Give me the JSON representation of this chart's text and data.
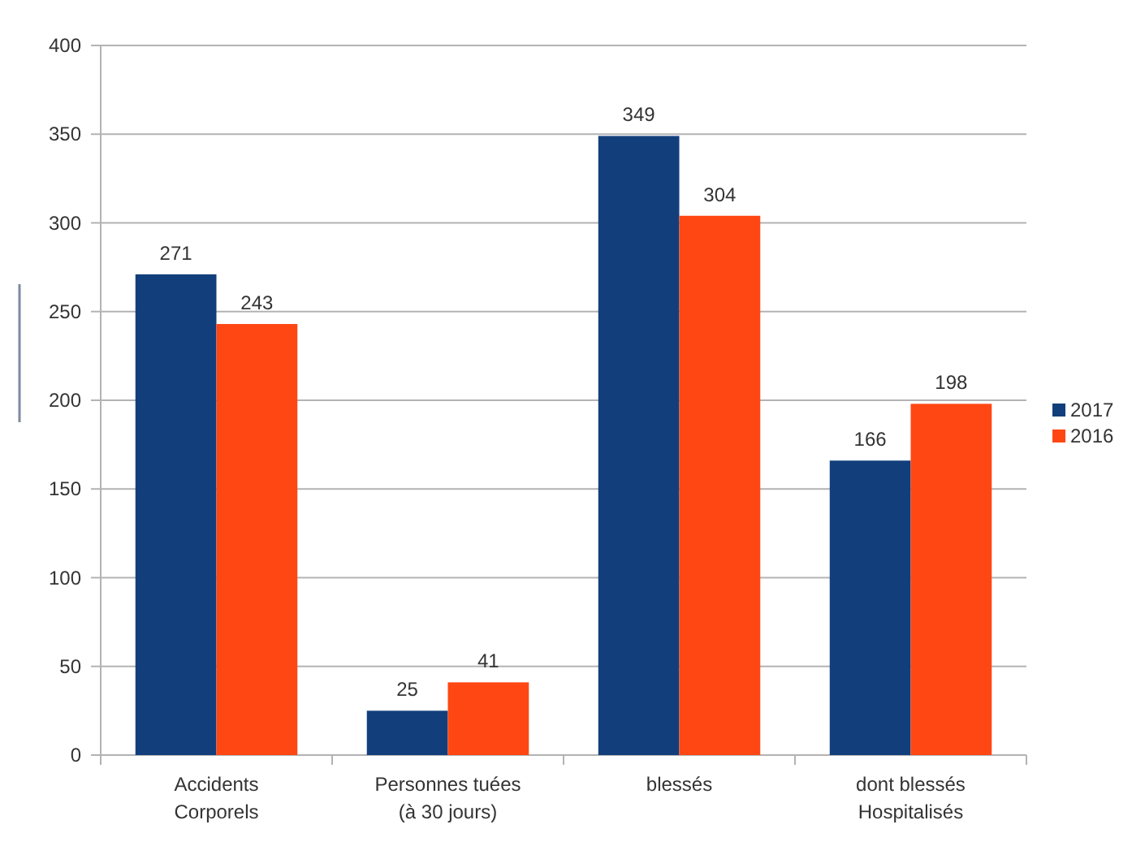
{
  "chart_data": {
    "type": "bar",
    "categories": [
      "Accidents\nCorporels",
      "Personnes tuées\n(à 30 jours)",
      "blessés",
      "dont blessés\nHospitalisés"
    ],
    "series": [
      {
        "name": "2017",
        "color": "#123f7c",
        "values": [
          271,
          25,
          349,
          166
        ]
      },
      {
        "name": "2016",
        "color": "#ff4714",
        "values": [
          243,
          41,
          304,
          198
        ]
      }
    ],
    "ylim": [
      0,
      400
    ],
    "yticks": [
      0,
      50,
      100,
      150,
      200,
      250,
      300,
      350,
      400
    ],
    "grid": "y",
    "legend": "right",
    "data_labels": true
  }
}
